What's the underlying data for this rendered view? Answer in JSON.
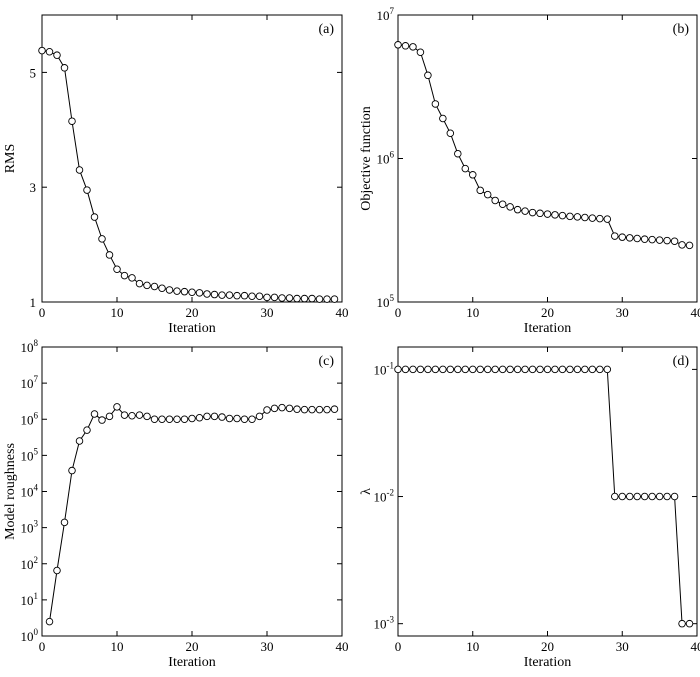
{
  "chart_data": [
    {
      "panel": "a",
      "type": "line",
      "tag": "(a)",
      "xlabel": "Iteration",
      "ylabel": "RMS",
      "xlim": [
        0,
        40
      ],
      "ylim": [
        1,
        6
      ],
      "yscale": "linear",
      "xticks": [
        0,
        10,
        20,
        30,
        40
      ],
      "yticks": [
        1,
        3,
        5
      ],
      "yticklabels": [
        "1",
        "3",
        "5"
      ],
      "grid": false,
      "series": [
        {
          "marker": "circle",
          "x": [
            0,
            1,
            2,
            3,
            4,
            5,
            6,
            7,
            8,
            9,
            10,
            11,
            12,
            13,
            14,
            15,
            16,
            17,
            18,
            19,
            20,
            21,
            22,
            23,
            24,
            25,
            26,
            27,
            28,
            29,
            30,
            31,
            32,
            33,
            34,
            35,
            36,
            37,
            38,
            39
          ],
          "y": [
            5.38,
            5.36,
            5.3,
            5.08,
            4.15,
            3.3,
            2.95,
            2.48,
            2.1,
            1.82,
            1.57,
            1.46,
            1.42,
            1.32,
            1.29,
            1.27,
            1.24,
            1.21,
            1.19,
            1.18,
            1.17,
            1.16,
            1.14,
            1.13,
            1.12,
            1.12,
            1.11,
            1.11,
            1.1,
            1.1,
            1.08,
            1.08,
            1.07,
            1.07,
            1.06,
            1.06,
            1.06,
            1.05,
            1.05,
            1.05
          ]
        }
      ]
    },
    {
      "panel": "b",
      "type": "line",
      "tag": "(b)",
      "xlabel": "Iteration",
      "ylabel": "Objective function",
      "xlim": [
        0,
        40
      ],
      "ylim": [
        100000,
        10000000
      ],
      "yscale": "log",
      "xticks": [
        0,
        10,
        20,
        30,
        40
      ],
      "yticks": [
        100000,
        1000000,
        10000000
      ],
      "yticklabels": [
        {
          "base": "10",
          "exp": "5"
        },
        {
          "base": "10",
          "exp": "6"
        },
        {
          "base": "10",
          "exp": "7"
        }
      ],
      "grid": false,
      "series": [
        {
          "marker": "circle",
          "x": [
            0,
            1,
            2,
            3,
            4,
            5,
            6,
            7,
            8,
            9,
            10,
            11,
            12,
            13,
            14,
            15,
            16,
            17,
            18,
            19,
            20,
            21,
            22,
            23,
            24,
            25,
            26,
            27,
            28,
            29,
            30,
            31,
            32,
            33,
            34,
            35,
            36,
            37,
            38,
            39
          ],
          "y": [
            6200000,
            6100000,
            6000000,
            5500000,
            3800000,
            2400000,
            1900000,
            1500000,
            1080000,
            850000,
            770000,
            600000,
            560000,
            510000,
            480000,
            460000,
            440000,
            430000,
            420000,
            415000,
            410000,
            405000,
            400000,
            395000,
            392000,
            388000,
            384000,
            381000,
            378000,
            288000,
            283000,
            280000,
            277000,
            274000,
            272000,
            270000,
            268000,
            265000,
            250000,
            248000
          ]
        }
      ]
    },
    {
      "panel": "c",
      "type": "line",
      "tag": "(c)",
      "xlabel": "Iteration",
      "ylabel": "Model roughness",
      "xlim": [
        0,
        40
      ],
      "ylim": [
        1,
        100000000
      ],
      "yscale": "log",
      "xticks": [
        0,
        10,
        20,
        30,
        40
      ],
      "yticks": [
        1,
        10,
        100,
        1000,
        10000,
        100000,
        1000000,
        10000000,
        100000000
      ],
      "yticklabels": [
        {
          "base": "10",
          "exp": "0"
        },
        {
          "base": "10",
          "exp": "1"
        },
        {
          "base": "10",
          "exp": "2"
        },
        {
          "base": "10",
          "exp": "3"
        },
        {
          "base": "10",
          "exp": "4"
        },
        {
          "base": "10",
          "exp": "5"
        },
        {
          "base": "10",
          "exp": "6"
        },
        {
          "base": "10",
          "exp": "7"
        },
        {
          "base": "10",
          "exp": "8"
        }
      ],
      "grid": false,
      "series": [
        {
          "marker": "circle",
          "x": [
            1,
            2,
            3,
            4,
            5,
            6,
            7,
            8,
            9,
            10,
            11,
            12,
            13,
            14,
            15,
            16,
            17,
            18,
            19,
            20,
            21,
            22,
            23,
            24,
            25,
            26,
            27,
            28,
            29,
            30,
            31,
            32,
            33,
            34,
            35,
            36,
            37,
            38,
            39
          ],
          "y": [
            2.5,
            65,
            1400,
            38000,
            250000,
            500000,
            1400000,
            950000,
            1200000,
            2200000,
            1300000,
            1250000,
            1300000,
            1200000,
            1000000,
            1000000,
            1000000,
            1000000,
            1000000,
            1050000,
            1100000,
            1200000,
            1200000,
            1150000,
            1050000,
            1050000,
            1000000,
            1000000,
            1200000,
            1800000,
            2000000,
            2100000,
            2000000,
            1900000,
            1850000,
            1850000,
            1850000,
            1850000,
            1900000
          ]
        }
      ]
    },
    {
      "panel": "d",
      "type": "line",
      "tag": "(d)",
      "xlabel": "Iteration",
      "ylabel": "λ",
      "xlim": [
        0,
        40
      ],
      "ylim": [
        0.0008,
        0.15
      ],
      "yscale": "log",
      "xticks": [
        0,
        10,
        20,
        30,
        40
      ],
      "yticks": [
        0.001,
        0.01,
        0.1
      ],
      "yticklabels": [
        {
          "base": "10",
          "exp": "-3"
        },
        {
          "base": "10",
          "exp": "-2"
        },
        {
          "base": "10",
          "exp": "-1"
        }
      ],
      "grid": false,
      "series": [
        {
          "marker": "circle",
          "x": [
            0,
            1,
            2,
            3,
            4,
            5,
            6,
            7,
            8,
            9,
            10,
            11,
            12,
            13,
            14,
            15,
            16,
            17,
            18,
            19,
            20,
            21,
            22,
            23,
            24,
            25,
            26,
            27,
            28,
            29,
            30,
            31,
            32,
            33,
            34,
            35,
            36,
            37,
            38,
            39
          ],
          "y": [
            0.1,
            0.1,
            0.1,
            0.1,
            0.1,
            0.1,
            0.1,
            0.1,
            0.1,
            0.1,
            0.1,
            0.1,
            0.1,
            0.1,
            0.1,
            0.1,
            0.1,
            0.1,
            0.1,
            0.1,
            0.1,
            0.1,
            0.1,
            0.1,
            0.1,
            0.1,
            0.1,
            0.1,
            0.1,
            0.01,
            0.01,
            0.01,
            0.01,
            0.01,
            0.01,
            0.01,
            0.01,
            0.01,
            0.001,
            0.001
          ]
        }
      ]
    }
  ]
}
